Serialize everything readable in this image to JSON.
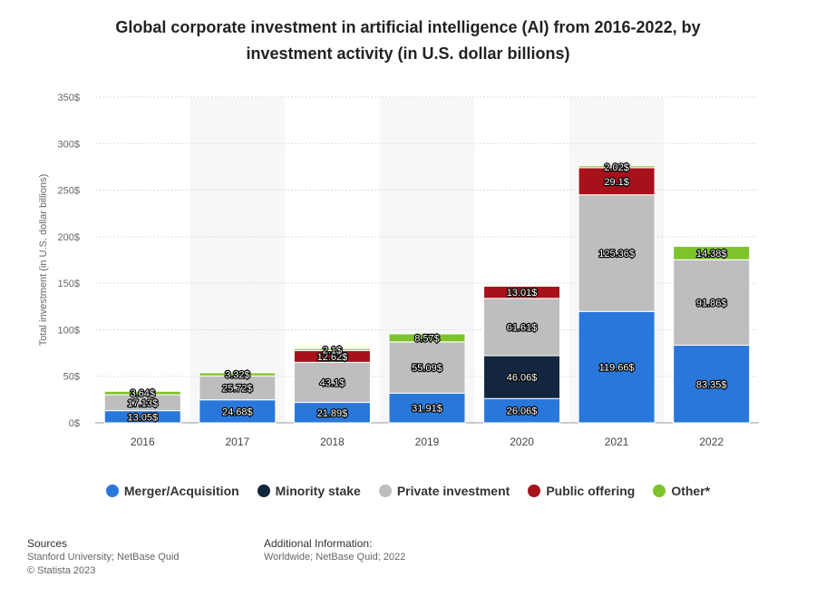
{
  "colors": {
    "merger": "#2a77db",
    "minority": "#12263f",
    "private": "#bebebe",
    "public": "#a6111a",
    "other": "#7fc32a"
  },
  "chart_data": {
    "type": "bar",
    "stacked": true,
    "title": "Global corporate investment in artificial intelligence (AI) from 2016-2022, by investment activity (in U.S. dollar billions)",
    "xlabel": "",
    "ylabel": "Total investment (in U.S. dollar billions)",
    "ylim": [
      0,
      350
    ],
    "yticks": [
      0,
      50,
      100,
      150,
      200,
      250,
      300,
      350
    ],
    "ytick_labels": [
      "0$",
      "50$",
      "100$",
      "150$",
      "200$",
      "250$",
      "300$",
      "350$"
    ],
    "categories": [
      "2016",
      "2017",
      "2018",
      "2019",
      "2020",
      "2021",
      "2022"
    ],
    "legend_position": "bottom",
    "series": [
      {
        "name": "Merger/Acquisition",
        "color_key": "merger",
        "values": [
          13.05,
          24.68,
          21.89,
          31.91,
          26.06,
          119.66,
          83.35
        ],
        "labels": [
          "13.05$",
          "24.68$",
          "21.89$",
          "31.91$",
          "26.06$",
          "119.66$",
          "83.35$"
        ]
      },
      {
        "name": "Minority stake",
        "color_key": "minority",
        "values": [
          null,
          null,
          null,
          null,
          46.06,
          null,
          null
        ],
        "labels": [
          "",
          "",
          "",
          "",
          "46.06$",
          "",
          ""
        ]
      },
      {
        "name": "Private investment",
        "color_key": "private",
        "values": [
          17.13,
          25.72,
          43.1,
          55.09,
          61.61,
          125.36,
          91.86
        ],
        "labels": [
          "17.13$",
          "25.72$",
          "43.1$",
          "55.09$",
          "61.61$",
          "125.36$",
          "91.86$"
        ]
      },
      {
        "name": "Public offering",
        "color_key": "public",
        "values": [
          null,
          null,
          12.62,
          null,
          13.01,
          29.1,
          null
        ],
        "labels": [
          "",
          "",
          "12.62$",
          "",
          "13.01$",
          "29.1$",
          ""
        ]
      },
      {
        "name": "Other*",
        "color_key": "other",
        "values": [
          3.64,
          3.32,
          2.1,
          8.57,
          null,
          2.02,
          14.38
        ],
        "labels": [
          "3.64$",
          "3.32$",
          "2.1$",
          "8.57$",
          "",
          "2.02$",
          "14.38$"
        ]
      }
    ]
  },
  "footer": {
    "sources_heading": "Sources",
    "sources_line1": "Stanford University; NetBase Quid",
    "sources_line2": "© Statista 2023",
    "info_heading": "Additional Information:",
    "info_line1": "Worldwide; NetBase Quid; 2022"
  }
}
